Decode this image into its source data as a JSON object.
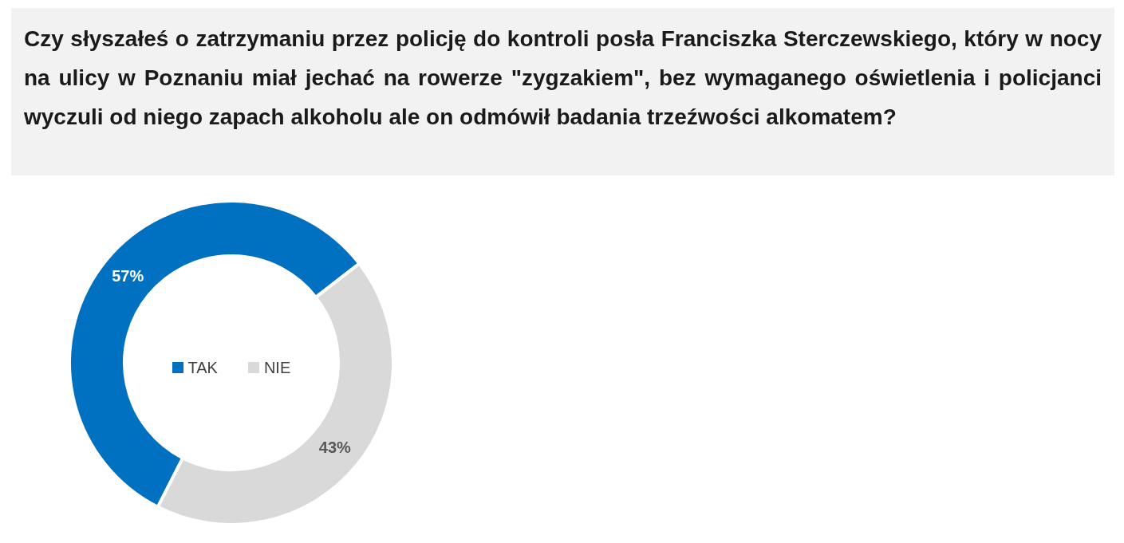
{
  "chart_data": {
    "type": "donut",
    "title": "Czy słyszałeś o zatrzymaniu przez policję do kontroli posła Franciszka Sterczewskiego, który w nocy na ulicy w Poznaniu miał  jechać na rowerze \"zygzakiem\", bez wymaganego oświetlenia i policjanci wyczuli od niego zapach alkoholu ale on odmówił badania trzeźwości alkomatem?",
    "categories": [
      "TAK",
      "NIE"
    ],
    "values": [
      57,
      43
    ],
    "value_labels": [
      "57%",
      "43%"
    ],
    "colors": [
      "#0070c0",
      "#d9d9d9"
    ],
    "legend": "center"
  }
}
